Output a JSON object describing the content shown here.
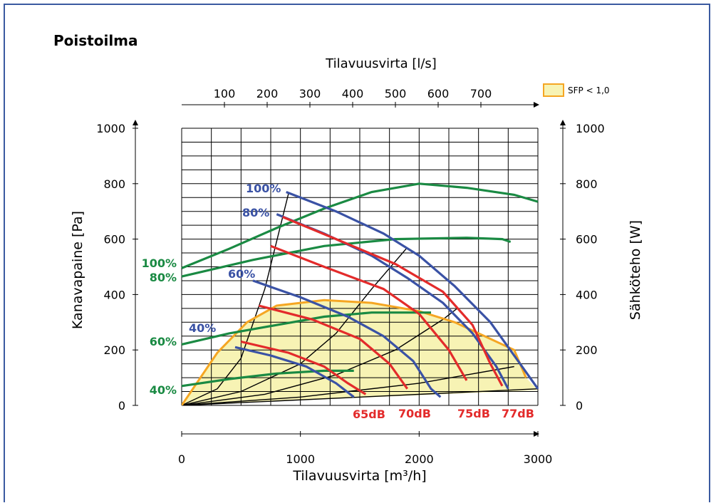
{
  "chart_data": {
    "type": "line",
    "title": "Poistoilma",
    "xlabel": "Tilavuusvirta [m³/h]",
    "x2label": "Tilavuusvirta [l/s]",
    "ylabel": "Kanavapaine [Pa]",
    "y2label": "Sähköteho [W]",
    "xlim": [
      0,
      3000
    ],
    "ylim": [
      0,
      1000
    ],
    "y2lim": [
      0,
      1000
    ],
    "x_ticks": [
      0,
      1000,
      2000,
      3000
    ],
    "y_ticks": [
      0,
      200,
      400,
      600,
      800,
      1000
    ],
    "x2_ticks": [
      100,
      200,
      300,
      400,
      500,
      600,
      700
    ],
    "grid": true,
    "legend": {
      "label": "SFP < 1,0",
      "color": "#f7f3b4",
      "border": "#f5a623",
      "placement": "top-right"
    },
    "colors": {
      "fan": "#3a52a5",
      "sound": "#e32b2b",
      "power": "#1a8a43",
      "sfp": "#f5a623",
      "sfp_fill": "#f7f3b4",
      "system": "#000000"
    },
    "sfp_region": {
      "name": "SFP < 1,0",
      "points": [
        [
          0,
          0
        ],
        [
          300,
          190
        ],
        [
          550,
          300
        ],
        [
          800,
          360
        ],
        [
          1200,
          380
        ],
        [
          1600,
          370
        ],
        [
          2000,
          340
        ],
        [
          2300,
          300
        ],
        [
          2600,
          240
        ],
        [
          2800,
          200
        ],
        [
          2900,
          100
        ],
        [
          3000,
          55
        ]
      ]
    },
    "fan_curves": [
      {
        "label": "100%",
        "points": [
          [
            880,
            770
          ],
          [
            1300,
            700
          ],
          [
            1700,
            620
          ],
          [
            2000,
            540
          ],
          [
            2300,
            430
          ],
          [
            2600,
            300
          ],
          [
            2850,
            150
          ],
          [
            3000,
            60
          ]
        ]
      },
      {
        "label": "80%",
        "points": [
          [
            800,
            690
          ],
          [
            1200,
            620
          ],
          [
            1600,
            540
          ],
          [
            1900,
            460
          ],
          [
            2200,
            370
          ],
          [
            2450,
            260
          ],
          [
            2650,
            140
          ],
          [
            2750,
            60
          ]
        ]
      },
      {
        "label": "60%",
        "points": [
          [
            600,
            450
          ],
          [
            1000,
            390
          ],
          [
            1400,
            320
          ],
          [
            1700,
            250
          ],
          [
            1950,
            160
          ],
          [
            2100,
            60
          ],
          [
            2180,
            30
          ]
        ]
      },
      {
        "label": "40%",
        "points": [
          [
            450,
            210
          ],
          [
            750,
            180
          ],
          [
            1050,
            140
          ],
          [
            1300,
            80
          ],
          [
            1450,
            30
          ]
        ]
      }
    ],
    "sound_curves": [
      {
        "label": "65dB",
        "points": [
          [
            500,
            230
          ],
          [
            900,
            190
          ],
          [
            1200,
            140
          ],
          [
            1400,
            80
          ],
          [
            1550,
            40
          ]
        ]
      },
      {
        "label": "70dB",
        "points": [
          [
            650,
            360
          ],
          [
            1100,
            310
          ],
          [
            1500,
            240
          ],
          [
            1750,
            150
          ],
          [
            1900,
            60
          ]
        ]
      },
      {
        "label": "75dB",
        "points": [
          [
            750,
            575
          ],
          [
            1200,
            500
          ],
          [
            1700,
            420
          ],
          [
            2000,
            330
          ],
          [
            2250,
            200
          ],
          [
            2400,
            90
          ]
        ]
      },
      {
        "label": "77dB",
        "points": [
          [
            850,
            680
          ],
          [
            1300,
            600
          ],
          [
            1800,
            510
          ],
          [
            2200,
            410
          ],
          [
            2450,
            290
          ],
          [
            2600,
            150
          ],
          [
            2700,
            70
          ]
        ]
      }
    ],
    "power_curves": [
      {
        "label": "100%",
        "points": [
          [
            0,
            495
          ],
          [
            400,
            565
          ],
          [
            800,
            640
          ],
          [
            1200,
            710
          ],
          [
            1600,
            770
          ],
          [
            2000,
            800
          ],
          [
            2400,
            785
          ],
          [
            2800,
            760
          ],
          [
            3000,
            735
          ]
        ]
      },
      {
        "label": "80%",
        "points": [
          [
            0,
            465
          ],
          [
            600,
            525
          ],
          [
            1200,
            575
          ],
          [
            1800,
            600
          ],
          [
            2400,
            605
          ],
          [
            2700,
            600
          ],
          [
            2770,
            590
          ]
        ]
      },
      {
        "label": "60%",
        "points": [
          [
            0,
            220
          ],
          [
            400,
            260
          ],
          [
            800,
            290
          ],
          [
            1200,
            320
          ],
          [
            1600,
            335
          ],
          [
            2100,
            335
          ]
        ]
      },
      {
        "label": "40%",
        "points": [
          [
            0,
            70
          ],
          [
            400,
            95
          ],
          [
            800,
            115
          ],
          [
            1200,
            125
          ],
          [
            1450,
            125
          ]
        ]
      }
    ],
    "system_curves": [
      [
        [
          0,
          0
        ],
        [
          300,
          60
        ],
        [
          500,
          170
        ],
        [
          700,
          420
        ],
        [
          900,
          765
        ]
      ],
      [
        [
          0,
          0
        ],
        [
          500,
          50
        ],
        [
          1000,
          150
        ],
        [
          1300,
          260
        ],
        [
          1600,
          420
        ],
        [
          1900,
          570
        ]
      ],
      [
        [
          0,
          0
        ],
        [
          700,
          40
        ],
        [
          1300,
          110
        ],
        [
          1800,
          200
        ],
        [
          2200,
          310
        ],
        [
          2320,
          350
        ]
      ],
      [
        [
          0,
          0
        ],
        [
          1000,
          30
        ],
        [
          2000,
          80
        ],
        [
          2800,
          140
        ]
      ],
      [
        [
          0,
          0
        ],
        [
          3000,
          60
        ]
      ]
    ]
  }
}
